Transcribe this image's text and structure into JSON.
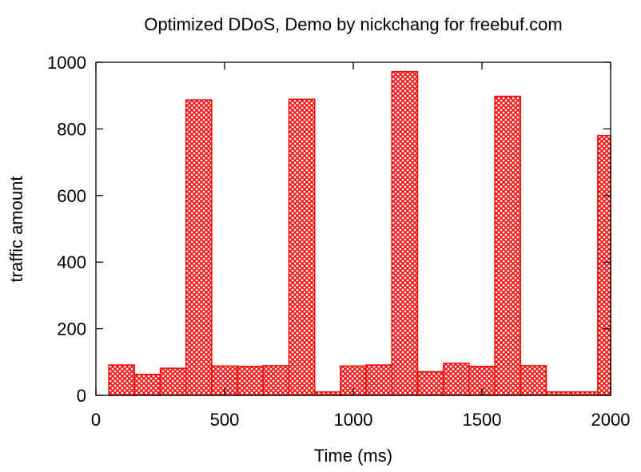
{
  "chart_data": {
    "type": "bar",
    "title": "Optimized DDoS, Demo by nickchang for freebuf.com",
    "xlabel": "Time (ms)",
    "ylabel": "traffic amount",
    "xlim": [
      0,
      2000
    ],
    "ylim": [
      0,
      1000
    ],
    "x_ticks": [
      0,
      500,
      1000,
      1500,
      2000
    ],
    "y_ticks": [
      0,
      200,
      400,
      600,
      800,
      1000
    ],
    "bar_width_ms": 100,
    "bar_color": "#ff0000",
    "fill_pattern": "crosshatch",
    "grid": false,
    "x": [
      100,
      200,
      300,
      400,
      500,
      600,
      700,
      800,
      900,
      1000,
      1100,
      1200,
      1300,
      1400,
      1500,
      1600,
      1700,
      1800,
      1900,
      2000
    ],
    "values": [
      91,
      63,
      81,
      887,
      88,
      87,
      89,
      889,
      10,
      88,
      91,
      972,
      71,
      96,
      87,
      898,
      89,
      10,
      10,
      780
    ]
  }
}
